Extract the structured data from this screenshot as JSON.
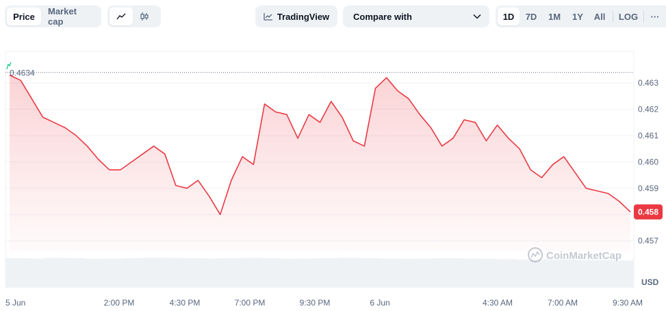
{
  "toolbar": {
    "price_tab": "Price",
    "marketcap_tab": "Market cap",
    "tradingview": "TradingView",
    "compare_placeholder": "Compare with",
    "ranges": [
      "1D",
      "7D",
      "1M",
      "1Y",
      "All"
    ],
    "active_range": "1D",
    "log_label": "LOG",
    "more_label": "···"
  },
  "chart_data": {
    "type": "line",
    "ylim": [
      0.4566,
      0.4642
    ],
    "yticks": [
      0.463,
      0.462,
      0.461,
      0.46,
      0.459,
      0.458,
      0.457
    ],
    "ytick_labels": [
      "0.463",
      "0.462",
      "0.461",
      "0.460",
      "0.459",
      "0.458",
      "0.457"
    ],
    "current_price_label": "0.458",
    "open_price_label": "0.4634",
    "open_price": 0.4634,
    "unit_label": "USD",
    "xtick_labels": [
      "5 Jun",
      "2:00 PM",
      "4:30 PM",
      "7:00 PM",
      "9:30 PM",
      "6 Jun",
      "4:30 AM",
      "7:00 AM",
      "9:30 AM"
    ],
    "series": [
      {
        "line_color": "#ea3943",
        "x": [
          0,
          0.5,
          1,
          1.5,
          2,
          2.5,
          3,
          3.5,
          4,
          4.5,
          5,
          5.5,
          6,
          6.5,
          7,
          7.5,
          8,
          8.5,
          9,
          9.5,
          10,
          10.5,
          11,
          11.5,
          12,
          12.5,
          13,
          13.5,
          14,
          14.5,
          15,
          15.5,
          16,
          16.5,
          17,
          17.5,
          18,
          18.5,
          19,
          19.5,
          20,
          20.5,
          21,
          21.5,
          22,
          22.5,
          23,
          23.5,
          24
        ],
        "values": [
          0.4633,
          0.4631,
          0.4624,
          0.4617,
          0.4615,
          0.4613,
          0.461,
          0.4606,
          0.4601,
          0.4597,
          0.4597,
          0.46,
          0.4603,
          0.4606,
          0.4603,
          0.4591,
          0.459,
          0.4593,
          0.4587,
          0.458,
          0.4593,
          0.4602,
          0.4599,
          0.4622,
          0.4619,
          0.4618,
          0.4609,
          0.4618,
          0.4615,
          0.4623,
          0.4617,
          0.4608,
          0.4606,
          0.4628,
          0.4632,
          0.4627,
          0.4624,
          0.4618,
          0.4613,
          0.4606,
          0.4609,
          0.4616,
          0.4615,
          0.4608,
          0.4614,
          0.4609,
          0.4605,
          0.4597,
          0.4594
        ]
      }
    ],
    "tail_values": [
      0.4599,
      0.4602,
      0.4596,
      0.459,
      0.4589,
      0.4588,
      0.4585,
      0.4581
    ],
    "volume": [
      0.9,
      0.89,
      0.91,
      0.9,
      0.88,
      0.89,
      0.9,
      0.92,
      0.91,
      0.9,
      0.89,
      0.9,
      0.91,
      0.9,
      0.88,
      0.89,
      0.9,
      0.91,
      0.9,
      0.89,
      0.88,
      0.89,
      0.9,
      0.89,
      0.88,
      0.87,
      0.86,
      0.86,
      0.85,
      0.84,
      0.84,
      0.83
    ],
    "watermark": "CoinMarketCap"
  }
}
